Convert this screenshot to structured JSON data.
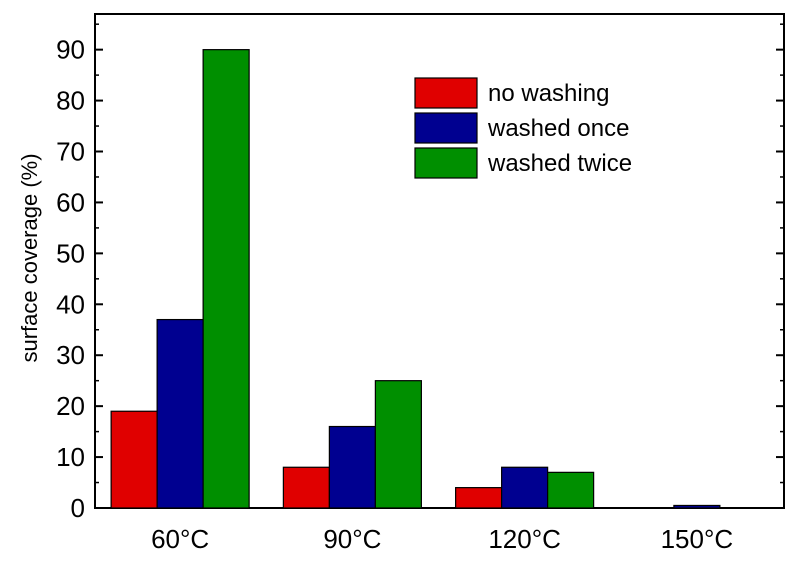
{
  "chart_data": {
    "type": "bar",
    "categories": [
      "60°C",
      "90°C",
      "120°C",
      "150°C"
    ],
    "series": [
      {
        "name": "no washing",
        "color": "#e00000",
        "values": [
          19,
          8,
          4,
          0
        ]
      },
      {
        "name": "washed once",
        "color": "#000090",
        "values": [
          37,
          16,
          8,
          0.5
        ]
      },
      {
        "name": "washed twice",
        "color": "#008f00",
        "values": [
          90,
          25,
          7,
          0
        ]
      }
    ],
    "title": "",
    "xlabel": "",
    "ylabel": "surface coverage (%)",
    "ylim": [
      0,
      97
    ],
    "yticks": [
      0,
      10,
      20,
      30,
      40,
      50,
      60,
      70,
      80,
      90
    ],
    "ytick_labels": [
      "0",
      "10",
      "20",
      "30",
      "40",
      "50",
      "60",
      "70",
      "80",
      "90"
    ],
    "grid": false,
    "legend_position": "top-right"
  }
}
